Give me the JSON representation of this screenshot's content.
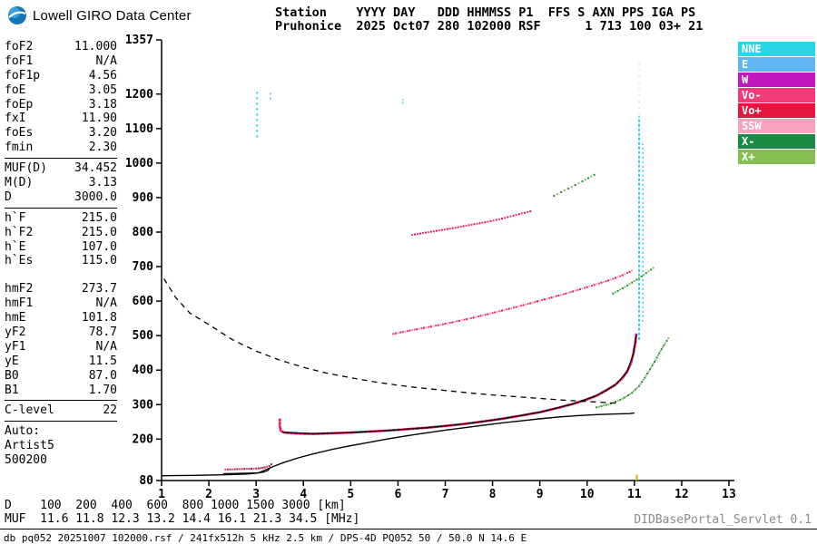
{
  "app": {
    "logo_text": "Lowell GIRO Data Center",
    "servlet_label": "DIDBasePortal_Servlet 0.1"
  },
  "header": {
    "line1": "Station    YYYY DAY   DDD HHMMSS P1  FFS S AXN PPS IGA PS",
    "line2": "Pruhonice  2025 Oct07 280 102000 RSF      1 713 100 03+ 21"
  },
  "parameters": {
    "groups": [
      {
        "rows": [
          [
            "foF2",
            "11.000"
          ],
          [
            "foF1",
            "N/A"
          ],
          [
            "foF1p",
            "4.56"
          ],
          [
            "foE",
            "3.05"
          ],
          [
            "foEp",
            "3.18"
          ],
          [
            "fxI",
            "11.90"
          ],
          [
            "foEs",
            "3.20"
          ],
          [
            "fmin",
            "2.30"
          ]
        ],
        "divider_after": true
      },
      {
        "rows": [
          [
            "MUF(D)",
            "34.452"
          ],
          [
            "M(D)",
            "3.13"
          ],
          [
            "D",
            "3000.0"
          ]
        ],
        "divider_after": true
      },
      {
        "rows": [
          [
            "h`F",
            "215.0"
          ],
          [
            "h`F2",
            "215.0"
          ],
          [
            "h`E",
            "107.0"
          ],
          [
            "h`Es",
            "115.0"
          ]
        ],
        "gap_after": true
      },
      {
        "rows": [
          [
            "hmF2",
            "273.7"
          ],
          [
            "hmF1",
            "N/A"
          ],
          [
            "hmE",
            "101.8"
          ],
          [
            "yF2",
            "78.7"
          ],
          [
            "yF1",
            "N/A"
          ],
          [
            "yE",
            "11.5"
          ],
          [
            "B0",
            "87.0"
          ],
          [
            "B1",
            "1.70"
          ]
        ],
        "divider_after": true
      },
      {
        "rows": [
          [
            "C-level",
            "22"
          ]
        ],
        "divider_after": true
      },
      {
        "rows": [
          [
            "Auto:"
          ],
          [
            "Artist5"
          ],
          [
            "500200"
          ]
        ]
      }
    ]
  },
  "legend": {
    "items": [
      {
        "label": "NNE",
        "color": "#29D3E8"
      },
      {
        "label": "E",
        "color": "#5FB6F2"
      },
      {
        "label": "W",
        "color": "#BE18BE"
      },
      {
        "label": "Vo-",
        "color": "#F23C77"
      },
      {
        "label": "Vo+",
        "color": "#E3173D"
      },
      {
        "label": "SSW",
        "color": "#F7A3BE"
      },
      {
        "label": "X-",
        "color": "#1C8A45"
      },
      {
        "label": "X+",
        "color": "#86BE52"
      }
    ]
  },
  "muf_table": {
    "rows": [
      {
        "label": "D",
        "values": [
          "100",
          "200",
          "400",
          "600",
          "800",
          "1000",
          "1500",
          "3000"
        ],
        "unit": "[km]",
        "text": "D    100  200  400  600  800 1000 1500 3000 [km]"
      },
      {
        "label": "MUF",
        "values": [
          "11.6",
          "11.8",
          "12.3",
          "13.2",
          "14.4",
          "16.1",
          "21.3",
          "34.5"
        ],
        "unit": "[MHz]",
        "text": "MUF  11.6 11.8 12.3 13.2 14.4 16.1 21.3 34.5 [MHz]"
      }
    ]
  },
  "status_bar": {
    "text": "db pq052 20251007 102000.rsf / 241fx512h 5 kHz 2.5 km / DPS-4D PQ052 50 / 50.0 N 14.6 E"
  },
  "chart_data": {
    "type": "scatter",
    "title": "Pruhonice ionogram 2025 Oct07 280 102000",
    "xlabel": "MHz",
    "ylabel": "km",
    "xlim": [
      1,
      13
    ],
    "ylim": [
      80,
      1357
    ],
    "x_ticks": [
      1,
      2,
      3,
      4,
      5,
      6,
      7,
      8,
      9,
      10,
      11,
      12,
      13
    ],
    "y_ticks": [
      80,
      200,
      300,
      400,
      500,
      600,
      700,
      800,
      900,
      1000,
      1100,
      1200,
      1357
    ],
    "grid": false,
    "legend_position": "right",
    "series": [
      {
        "name": "profile-line",
        "mode": "line",
        "color": "#000000",
        "width": 1.4,
        "points": [
          [
            1.0,
            94
          ],
          [
            1.7,
            95
          ],
          [
            2.4,
            97
          ],
          [
            2.8,
            99
          ],
          [
            3.05,
            102
          ],
          [
            3.15,
            108
          ],
          [
            3.35,
            120
          ],
          [
            3.6,
            133
          ],
          [
            3.9,
            146
          ],
          [
            4.2,
            157
          ],
          [
            4.6,
            170
          ],
          [
            5.0,
            181
          ],
          [
            5.4,
            191
          ],
          [
            5.8,
            201
          ],
          [
            6.2,
            210
          ],
          [
            6.6,
            218
          ],
          [
            7.0,
            226
          ],
          [
            7.4,
            233
          ],
          [
            7.8,
            240
          ],
          [
            8.2,
            247
          ],
          [
            8.6,
            253
          ],
          [
            9.0,
            259
          ],
          [
            9.4,
            264
          ],
          [
            9.8,
            268
          ],
          [
            10.2,
            271
          ],
          [
            10.6,
            273
          ],
          [
            10.9,
            274
          ],
          [
            11.0,
            276
          ]
        ]
      },
      {
        "name": "transmission-curve",
        "mode": "dashed",
        "color": "#000000",
        "width": 1.3,
        "points": [
          [
            1.05,
            665
          ],
          [
            1.3,
            610
          ],
          [
            1.6,
            565
          ],
          [
            2.0,
            532
          ],
          [
            2.5,
            488
          ],
          [
            3.0,
            455
          ],
          [
            3.5,
            429
          ],
          [
            4.0,
            408
          ],
          [
            4.5,
            391
          ],
          [
            5.0,
            378
          ],
          [
            5.5,
            366
          ],
          [
            6.0,
            356
          ],
          [
            6.5,
            348
          ],
          [
            7.0,
            341
          ],
          [
            7.5,
            334
          ],
          [
            8.0,
            328
          ],
          [
            8.5,
            323
          ],
          [
            9.0,
            318
          ],
          [
            9.5,
            313
          ],
          [
            10.0,
            309
          ],
          [
            10.4,
            306
          ],
          [
            10.7,
            303
          ]
        ]
      },
      {
        "name": "f-trace-fit",
        "mode": "line",
        "color": "#000000",
        "width": 1.2,
        "points": [
          [
            3.55,
            220
          ],
          [
            4.2,
            216
          ],
          [
            5.0,
            219
          ],
          [
            5.8,
            225
          ],
          [
            6.6,
            233
          ],
          [
            7.4,
            244
          ],
          [
            8.2,
            259
          ],
          [
            9.0,
            278
          ],
          [
            9.7,
            302
          ],
          [
            10.2,
            326
          ],
          [
            10.6,
            357
          ],
          [
            10.85,
            396
          ],
          [
            10.98,
            448
          ],
          [
            11.04,
            502
          ]
        ]
      },
      {
        "name": "e-trace-fit",
        "mode": "line",
        "color": "#000000",
        "width": 1.2,
        "points": [
          [
            2.3,
            100
          ],
          [
            2.7,
            101
          ],
          [
            3.0,
            102
          ],
          [
            3.15,
            104
          ],
          [
            3.25,
            109
          ],
          [
            3.3,
            118
          ]
        ]
      },
      {
        "name": "f-trace-o",
        "mode": "dots",
        "size": 2.6,
        "step": 2.0,
        "colors": [
          "#E3173D",
          "#F23C77",
          "#E3173D",
          "#F23C77",
          "#BE18BE"
        ],
        "points": [
          [
            3.5,
            256
          ],
          [
            3.5,
            238
          ],
          [
            3.52,
            224
          ],
          [
            3.6,
            219
          ],
          [
            3.9,
            216
          ],
          [
            4.2,
            215
          ],
          [
            4.6,
            217
          ],
          [
            5.0,
            219
          ],
          [
            5.4,
            222
          ],
          [
            5.8,
            225
          ],
          [
            6.2,
            229
          ],
          [
            6.6,
            233
          ],
          [
            7.0,
            238
          ],
          [
            7.4,
            244
          ],
          [
            7.8,
            251
          ],
          [
            8.2,
            259
          ],
          [
            8.6,
            268
          ],
          [
            9.0,
            278
          ],
          [
            9.4,
            291
          ],
          [
            9.7,
            302
          ],
          [
            10.0,
            315
          ],
          [
            10.2,
            326
          ],
          [
            10.4,
            341
          ],
          [
            10.6,
            358
          ],
          [
            10.75,
            377
          ],
          [
            10.85,
            397
          ],
          [
            10.93,
            421
          ],
          [
            10.98,
            449
          ],
          [
            11.02,
            479
          ],
          [
            11.04,
            503
          ]
        ]
      },
      {
        "name": "f-trace-x",
        "mode": "dots",
        "size": 2,
        "step": 2.6,
        "colors": [
          "#1C8A45",
          "#86BE52"
        ],
        "points": [
          [
            10.2,
            292
          ],
          [
            10.5,
            303
          ],
          [
            10.75,
            317
          ],
          [
            10.95,
            334
          ],
          [
            11.1,
            354
          ],
          [
            11.22,
            378
          ],
          [
            11.33,
            402
          ],
          [
            11.45,
            430
          ],
          [
            11.55,
            455
          ],
          [
            11.65,
            478
          ],
          [
            11.72,
            492
          ]
        ]
      },
      {
        "name": "second-hop-o",
        "mode": "dots",
        "size": 2,
        "step": 2.8,
        "colors": [
          "#F23C77",
          "#E3173D",
          "#F7A3BE"
        ],
        "points": [
          [
            5.9,
            505
          ],
          [
            6.3,
            516
          ],
          [
            6.7,
            526
          ],
          [
            7.1,
            537
          ],
          [
            7.5,
            549
          ],
          [
            7.9,
            562
          ],
          [
            8.3,
            576
          ],
          [
            8.7,
            590
          ],
          [
            9.1,
            605
          ],
          [
            9.5,
            620
          ],
          [
            9.9,
            636
          ],
          [
            10.2,
            649
          ],
          [
            10.5,
            662
          ],
          [
            10.75,
            675
          ],
          [
            10.95,
            688
          ]
        ]
      },
      {
        "name": "second-hop-x",
        "mode": "dots",
        "size": 2,
        "step": 3.2,
        "colors": [
          "#1C8A45",
          "#86BE52"
        ],
        "points": [
          [
            10.55,
            622
          ],
          [
            10.8,
            641
          ],
          [
            11.0,
            658
          ],
          [
            11.2,
            676
          ],
          [
            11.4,
            696
          ]
        ]
      },
      {
        "name": "third-hop-o",
        "mode": "dots",
        "size": 2,
        "step": 3.0,
        "colors": [
          "#F23C77",
          "#E3173D"
        ],
        "points": [
          [
            6.3,
            792
          ],
          [
            6.7,
            801
          ],
          [
            7.1,
            810
          ],
          [
            7.5,
            820
          ],
          [
            7.9,
            830
          ],
          [
            8.2,
            839
          ],
          [
            8.5,
            850
          ],
          [
            8.8,
            860
          ]
        ]
      },
      {
        "name": "third-hop-x",
        "mode": "dots",
        "size": 2,
        "step": 4.0,
        "colors": [
          "#1C8A45",
          "#86BE52"
        ],
        "points": [
          [
            9.3,
            905
          ],
          [
            9.6,
            926
          ],
          [
            9.9,
            947
          ],
          [
            10.15,
            966
          ]
        ]
      },
      {
        "name": "es-trace",
        "mode": "dots",
        "size": 2,
        "step": 2.6,
        "colors": [
          "#F23C77",
          "#E3173D",
          "#444444"
        ],
        "points": [
          [
            2.35,
            112
          ],
          [
            2.6,
            113
          ],
          [
            2.85,
            114
          ],
          [
            3.05,
            115
          ],
          [
            3.18,
            118
          ],
          [
            3.28,
            122
          ],
          [
            3.32,
            127
          ]
        ]
      }
    ],
    "vsegments": [
      {
        "name": "foF2-spread-main",
        "x": 11.1,
        "from": 488,
        "to": 1135,
        "color": "#29D3E8",
        "width": 2,
        "dash": "3,2"
      },
      {
        "name": "foF2-spread-side",
        "x": 11.18,
        "from": 540,
        "to": 1060,
        "color": "#5FB6F2",
        "width": 1.5,
        "dash": "2,3"
      },
      {
        "name": "foF2-spread-top",
        "x": 11.1,
        "from": 1140,
        "to": 1300,
        "color": "#29D3E8",
        "width": 1,
        "dash": "1,6"
      },
      {
        "name": "noise-cyan-1",
        "x": 3.02,
        "from": 1075,
        "to": 1210,
        "color": "#29D3E8",
        "width": 2,
        "dash": "2,4"
      },
      {
        "name": "noise-cyan-2",
        "x": 3.3,
        "from": 1185,
        "to": 1210,
        "color": "#5FB6F2",
        "width": 1.5,
        "dash": "2,3"
      },
      {
        "name": "noise-cyan-3",
        "x": 6.1,
        "from": 1172,
        "to": 1186,
        "color": "#29D3E8",
        "width": 1.5,
        "dash": "2,2"
      },
      {
        "name": "gyro-mark-yellow",
        "x": 11.05,
        "from": 80,
        "to": 97,
        "color": "#C9B400",
        "width": 2,
        "dash": "none"
      }
    ]
  }
}
